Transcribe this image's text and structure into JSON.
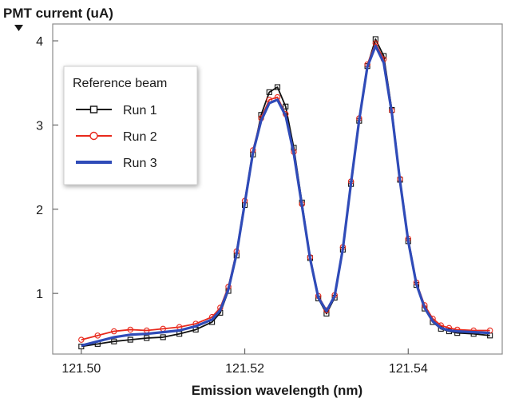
{
  "chart_data": {
    "type": "line",
    "title": "",
    "ylabel": "PMT current (uA)",
    "xlabel": "Emission wavelength (nm)",
    "xlim": [
      121.4965,
      121.5515
    ],
    "ylim": [
      0.28,
      4.2
    ],
    "x_ticks": [
      121.5,
      121.52,
      121.54
    ],
    "x_tick_labels": [
      "121.50",
      "121.52",
      "121.54"
    ],
    "y_ticks": [
      1,
      2,
      3,
      4
    ],
    "y_tick_labels": [
      "1",
      "2",
      "3",
      "4"
    ],
    "legend": {
      "title": "Reference beam",
      "position": "upper-left"
    },
    "series": [
      {
        "name": "Run 1",
        "color": "#111111",
        "marker": "square",
        "x": [
          121.5,
          121.502,
          121.504,
          121.506,
          121.508,
          121.51,
          121.512,
          121.514,
          121.516,
          121.517,
          121.518,
          121.519,
          121.52,
          121.521,
          121.522,
          121.523,
          121.524,
          121.525,
          121.526,
          121.527,
          121.528,
          121.529,
          121.53,
          121.531,
          121.532,
          121.533,
          121.534,
          121.535,
          121.536,
          121.537,
          121.538,
          121.539,
          121.54,
          121.541,
          121.542,
          121.543,
          121.544,
          121.545,
          121.546,
          121.548,
          121.55
        ],
        "y": [
          0.37,
          0.4,
          0.43,
          0.45,
          0.47,
          0.48,
          0.52,
          0.57,
          0.66,
          0.77,
          1.03,
          1.45,
          2.05,
          2.65,
          3.12,
          3.39,
          3.45,
          3.22,
          2.73,
          2.08,
          1.42,
          0.94,
          0.76,
          0.95,
          1.52,
          2.3,
          3.05,
          3.7,
          4.02,
          3.82,
          3.18,
          2.35,
          1.62,
          1.1,
          0.82,
          0.66,
          0.58,
          0.55,
          0.53,
          0.52,
          0.5
        ]
      },
      {
        "name": "Run 2",
        "color": "#e8291c",
        "marker": "circle",
        "x": [
          121.5,
          121.502,
          121.504,
          121.506,
          121.508,
          121.51,
          121.512,
          121.514,
          121.516,
          121.517,
          121.518,
          121.519,
          121.52,
          121.521,
          121.522,
          121.523,
          121.524,
          121.525,
          121.526,
          121.527,
          121.528,
          121.529,
          121.53,
          121.531,
          121.532,
          121.533,
          121.534,
          121.535,
          121.536,
          121.537,
          121.538,
          121.539,
          121.54,
          121.541,
          121.542,
          121.543,
          121.544,
          121.545,
          121.546,
          121.548,
          121.55
        ],
        "y": [
          0.45,
          0.5,
          0.55,
          0.57,
          0.56,
          0.58,
          0.6,
          0.64,
          0.72,
          0.83,
          1.08,
          1.5,
          2.1,
          2.7,
          3.08,
          3.3,
          3.33,
          3.13,
          2.68,
          2.06,
          1.43,
          0.97,
          0.8,
          0.98,
          1.55,
          2.33,
          3.08,
          3.72,
          3.97,
          3.78,
          3.17,
          2.36,
          1.65,
          1.13,
          0.86,
          0.7,
          0.62,
          0.59,
          0.57,
          0.56,
          0.56
        ]
      },
      {
        "name": "Run 3",
        "color": "#2f4bb8",
        "marker": "none",
        "x": [
          121.5,
          121.502,
          121.504,
          121.506,
          121.508,
          121.51,
          121.512,
          121.514,
          121.516,
          121.517,
          121.518,
          121.519,
          121.52,
          121.521,
          121.522,
          121.523,
          121.524,
          121.525,
          121.526,
          121.527,
          121.528,
          121.529,
          121.53,
          121.531,
          121.532,
          121.533,
          121.534,
          121.535,
          121.536,
          121.537,
          121.538,
          121.539,
          121.54,
          121.541,
          121.542,
          121.543,
          121.544,
          121.545,
          121.546,
          121.548,
          121.55
        ],
        "y": [
          0.38,
          0.43,
          0.48,
          0.51,
          0.52,
          0.54,
          0.56,
          0.61,
          0.69,
          0.8,
          1.05,
          1.47,
          2.07,
          2.67,
          3.05,
          3.26,
          3.3,
          3.11,
          2.66,
          2.04,
          1.41,
          0.95,
          0.79,
          0.97,
          1.53,
          2.31,
          3.06,
          3.69,
          3.94,
          3.74,
          3.14,
          2.33,
          1.62,
          1.11,
          0.83,
          0.67,
          0.59,
          0.56,
          0.55,
          0.54,
          0.53
        ]
      }
    ]
  }
}
